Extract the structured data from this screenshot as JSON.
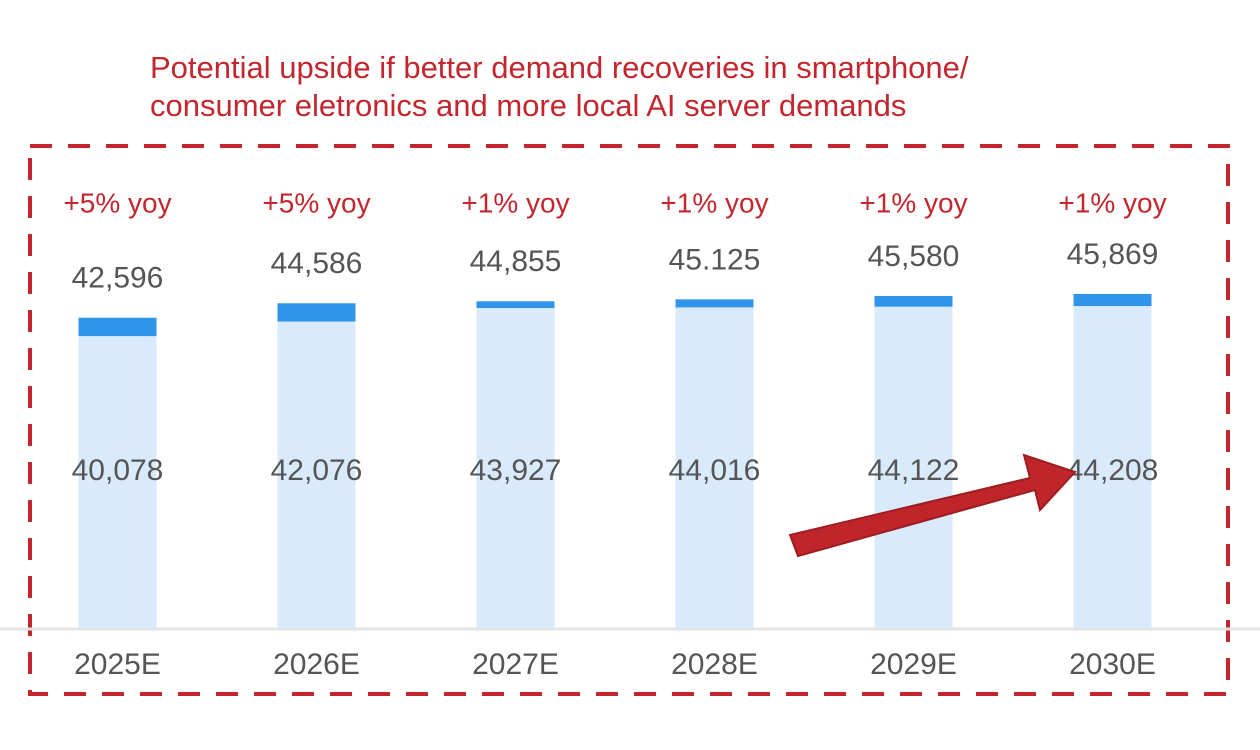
{
  "chart_data": {
    "type": "bar",
    "title": [
      "Potential upside if better demand recoveries in smartphone/",
      "consumer eletronics and more local AI server demands"
    ],
    "categories": [
      "2025E",
      "2026E",
      "2027E",
      "2028E",
      "2029E",
      "2030E"
    ],
    "annotations": [
      "+5% yoy",
      "+5% yoy",
      "+1% yoy",
      "+1% yoy",
      "+1% yoy",
      "+1% yoy"
    ],
    "series": [
      {
        "color": "#2e95ea",
        "values": [
          42596,
          44586,
          44855,
          45125,
          45580,
          45869
        ],
        "value_labels": [
          "42,596",
          "44,586",
          "44,855",
          "45.125",
          "45,580",
          "45,869"
        ]
      },
      {
        "color": "#d8eafb",
        "values": [
          40078,
          42076,
          43927,
          44016,
          44122,
          44208
        ],
        "value_labels": [
          "40,078",
          "42,076",
          "43,927",
          "44,016",
          "44,122",
          "44,208"
        ]
      }
    ],
    "ylim": [
      0,
      60000
    ]
  }
}
